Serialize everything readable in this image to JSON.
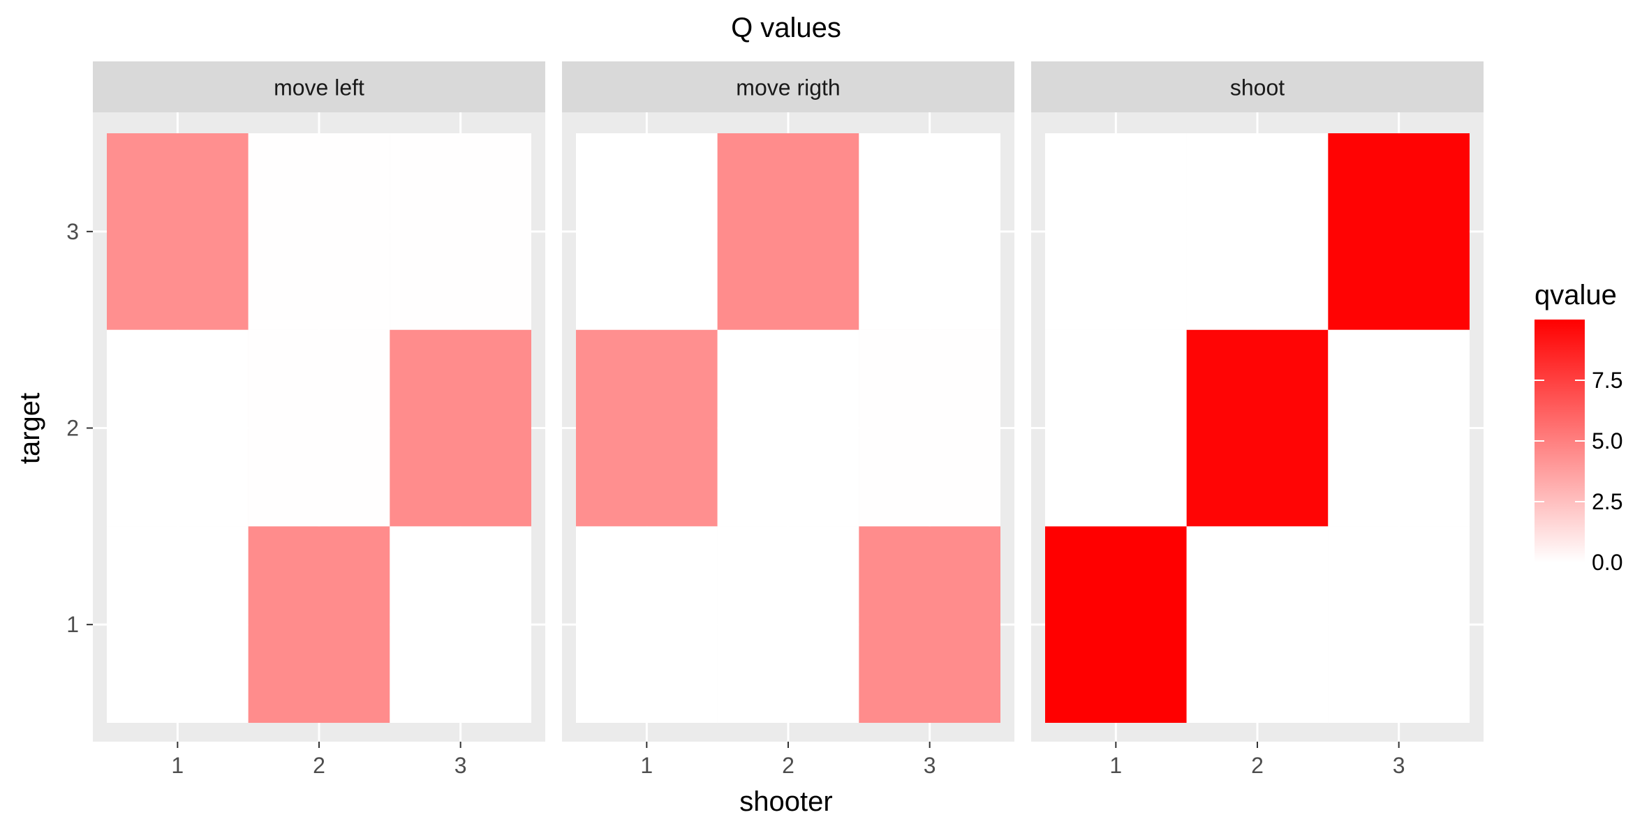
{
  "chart_data": {
    "type": "heatmap",
    "title": "Q values",
    "xlabel": "shooter",
    "ylabel": "target",
    "x_categories": [
      "1",
      "2",
      "3"
    ],
    "y_categories": [
      "1",
      "2",
      "3"
    ],
    "facets": [
      {
        "label": "move left",
        "cells": [
          {
            "x": 1,
            "y": 1,
            "value": 0.0
          },
          {
            "x": 2,
            "y": 1,
            "value": 4.5
          },
          {
            "x": 3,
            "y": 1,
            "value": 0.0
          },
          {
            "x": 1,
            "y": 2,
            "value": 0.0
          },
          {
            "x": 2,
            "y": 2,
            "value": 0.05
          },
          {
            "x": 3,
            "y": 2,
            "value": 4.5
          },
          {
            "x": 1,
            "y": 3,
            "value": 4.4
          },
          {
            "x": 2,
            "y": 3,
            "value": 0.05
          },
          {
            "x": 3,
            "y": 3,
            "value": 0.05
          }
        ]
      },
      {
        "label": "move rigth",
        "cells": [
          {
            "x": 1,
            "y": 1,
            "value": 0.0
          },
          {
            "x": 2,
            "y": 1,
            "value": 0.0
          },
          {
            "x": 3,
            "y": 1,
            "value": 4.5
          },
          {
            "x": 1,
            "y": 2,
            "value": 4.4
          },
          {
            "x": 2,
            "y": 2,
            "value": 0.0
          },
          {
            "x": 3,
            "y": 2,
            "value": 0.05
          },
          {
            "x": 1,
            "y": 3,
            "value": 0.0
          },
          {
            "x": 2,
            "y": 3,
            "value": 4.5
          },
          {
            "x": 3,
            "y": 3,
            "value": 0.0
          }
        ]
      },
      {
        "label": "shoot",
        "cells": [
          {
            "x": 1,
            "y": 1,
            "value": 10.0
          },
          {
            "x": 2,
            "y": 1,
            "value": 0.0
          },
          {
            "x": 3,
            "y": 1,
            "value": 0.0
          },
          {
            "x": 1,
            "y": 2,
            "value": 0.0
          },
          {
            "x": 2,
            "y": 2,
            "value": 9.8
          },
          {
            "x": 3,
            "y": 2,
            "value": 0.0
          },
          {
            "x": 1,
            "y": 3,
            "value": 0.0
          },
          {
            "x": 2,
            "y": 3,
            "value": 0.0
          },
          {
            "x": 3,
            "y": 3,
            "value": 9.9
          }
        ]
      }
    ],
    "legend": {
      "title": "qvalue",
      "placement": "right",
      "min": 0.0,
      "max": 10.0,
      "low_color": "#ffffff",
      "high_color": "#ff0000",
      "ticks": [
        "0.0",
        "2.5",
        "5.0",
        "7.5"
      ],
      "tick_values": [
        0.0,
        2.5,
        5.0,
        7.5
      ]
    },
    "panel_background": "#ebebeb",
    "strip_background": "#d9d9d9",
    "grid": true
  }
}
